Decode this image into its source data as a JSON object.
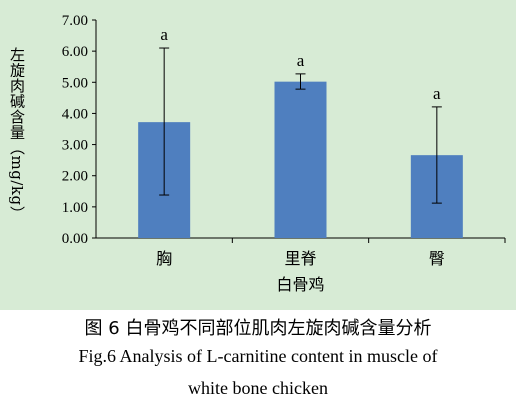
{
  "chart_data": {
    "type": "bar",
    "categories": [
      "胸",
      "里脊",
      "臀"
    ],
    "values": [
      3.72,
      5.02,
      2.66
    ],
    "error_low": [
      1.38,
      4.78,
      1.12
    ],
    "error_high": [
      6.1,
      5.27,
      4.21
    ],
    "significance": [
      "a",
      "a",
      "a"
    ],
    "xlabel": "白骨鸡",
    "ylabel": "左旋肉碱含量（mg/kg）",
    "ylim": [
      0,
      7
    ],
    "yticks": [
      "0.00",
      "1.00",
      "2.00",
      "3.00",
      "4.00",
      "5.00",
      "6.00",
      "7.00"
    ],
    "grid": false,
    "bar_color": "#4f7fbf",
    "background": "#d7ebd5"
  },
  "caption": {
    "cn": "图 6  白骨鸡不同部位肌肉左旋肉碱含量分析",
    "en_line1": "Fig.6 Analysis of L-carnitine content in muscle of",
    "en_line2": "white bone chicken"
  }
}
